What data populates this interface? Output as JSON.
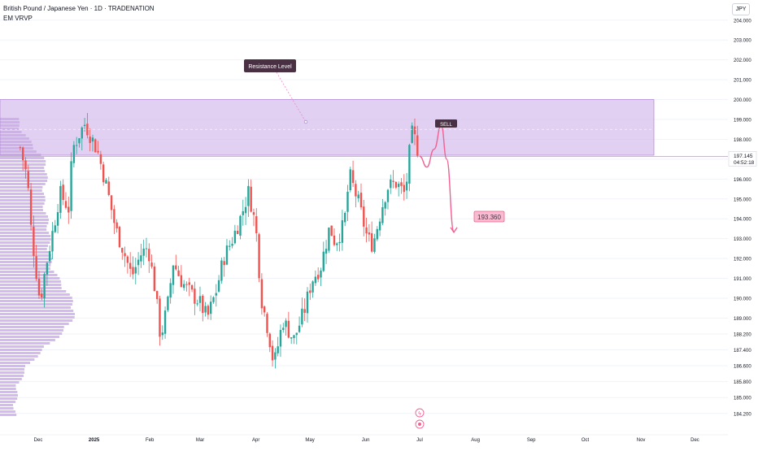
{
  "header": {
    "symbol_line": "British Pound / Japanese Yen · 1D · TRADENATION",
    "indicator": "EM VRVP",
    "currency_button": "JPY"
  },
  "colors": {
    "up": "#26a69a",
    "down": "#ef5350",
    "zone_fill": "#c9a9e6",
    "zone_edge": "#b48ad8",
    "volume_profile": "#c7a3ee",
    "projection": "#f06292",
    "label_dark": "#4a3043"
  },
  "annotations": {
    "resistance_label": "Resistance Level",
    "sell_label": "SELL",
    "target_label": "193.360",
    "last_price": "197.145",
    "countdown": "04:52:18"
  },
  "chart_data": {
    "type": "candlestick",
    "title": "British Pound / Japanese Yen · 1D · TRADENATION",
    "y_axis_ticks": [
      "204.000",
      "203.000",
      "202.000",
      "201.000",
      "200.000",
      "199.000",
      "198.000",
      "197.000",
      "196.000",
      "195.000",
      "194.000",
      "193.000",
      "192.000",
      "191.000",
      "190.000",
      "189.000",
      "188.200",
      "187.400",
      "186.600",
      "185.800",
      "185.000",
      "184.200"
    ],
    "x_axis_ticks": [
      "Dec",
      "2025",
      "Feb",
      "Mar",
      "Apr",
      "May",
      "Jun",
      "Jul",
      "Aug",
      "Sep",
      "Oct",
      "Nov",
      "Dec"
    ],
    "resistance_zone": [
      197.2,
      200.0
    ],
    "current_price": 197.145,
    "target_price": 193.36,
    "price_path": [
      {
        "date": "2024-11-21",
        "price": 197.6
      },
      {
        "date": "2024-11-25",
        "price": 196.0
      },
      {
        "date": "2024-11-27",
        "price": 193.5
      },
      {
        "date": "2024-12-02",
        "price": 189.8
      },
      {
        "date": "2024-12-05",
        "price": 191.5
      },
      {
        "date": "2024-12-10",
        "price": 193.8
      },
      {
        "date": "2024-12-13",
        "price": 195.3
      },
      {
        "date": "2024-12-18",
        "price": 194.5
      },
      {
        "date": "2024-12-20",
        "price": 197.5
      },
      {
        "date": "2024-12-24",
        "price": 198.3
      },
      {
        "date": "2024-12-27",
        "price": 198.8
      },
      {
        "date": "2025-01-03",
        "price": 197.4
      },
      {
        "date": "2025-01-08",
        "price": 195.6
      },
      {
        "date": "2025-01-13",
        "price": 193.5
      },
      {
        "date": "2025-01-17",
        "price": 192.5
      },
      {
        "date": "2025-01-22",
        "price": 191.1
      },
      {
        "date": "2025-01-27",
        "price": 192.2
      },
      {
        "date": "2025-01-31",
        "price": 192.6
      },
      {
        "date": "2025-02-04",
        "price": 190.4
      },
      {
        "date": "2025-02-07",
        "price": 188.0
      },
      {
        "date": "2025-02-11",
        "price": 189.7
      },
      {
        "date": "2025-02-14",
        "price": 191.8
      },
      {
        "date": "2025-02-19",
        "price": 190.8
      },
      {
        "date": "2025-02-24",
        "price": 190.2
      },
      {
        "date": "2025-02-28",
        "price": 189.9
      },
      {
        "date": "2025-03-05",
        "price": 189.0
      },
      {
        "date": "2025-03-10",
        "price": 190.4
      },
      {
        "date": "2025-03-14",
        "price": 192.0
      },
      {
        "date": "2025-03-19",
        "price": 193.0
      },
      {
        "date": "2025-03-24",
        "price": 194.2
      },
      {
        "date": "2025-03-28",
        "price": 195.4
      },
      {
        "date": "2025-04-01",
        "price": 193.5
      },
      {
        "date": "2025-04-04",
        "price": 190.0
      },
      {
        "date": "2025-04-08",
        "price": 188.3
      },
      {
        "date": "2025-04-11",
        "price": 186.6
      },
      {
        "date": "2025-04-16",
        "price": 188.9
      },
      {
        "date": "2025-04-22",
        "price": 187.9
      },
      {
        "date": "2025-04-28",
        "price": 189.4
      },
      {
        "date": "2025-05-02",
        "price": 190.9
      },
      {
        "date": "2025-05-07",
        "price": 191.6
      },
      {
        "date": "2025-05-12",
        "price": 193.6
      },
      {
        "date": "2025-05-15",
        "price": 192.8
      },
      {
        "date": "2025-05-20",
        "price": 193.7
      },
      {
        "date": "2025-05-23",
        "price": 196.2
      },
      {
        "date": "2025-05-28",
        "price": 194.8
      },
      {
        "date": "2025-06-02",
        "price": 193.0
      },
      {
        "date": "2025-06-05",
        "price": 192.7
      },
      {
        "date": "2025-06-10",
        "price": 194.6
      },
      {
        "date": "2025-06-13",
        "price": 195.6
      },
      {
        "date": "2025-06-18",
        "price": 195.8
      },
      {
        "date": "2025-06-23",
        "price": 195.2
      },
      {
        "date": "2025-06-25",
        "price": 197.1
      },
      {
        "date": "2025-06-27",
        "price": 198.4
      },
      {
        "date": "2025-07-01",
        "price": 197.145
      }
    ],
    "projection_path": [
      {
        "date": "2025-07-01",
        "price": 197.145
      },
      {
        "date": "2025-07-05",
        "price": 196.6
      },
      {
        "date": "2025-07-09",
        "price": 197.5
      },
      {
        "date": "2025-07-13",
        "price": 198.7
      },
      {
        "date": "2025-07-16",
        "price": 197.0
      },
      {
        "date": "2025-07-20",
        "price": 193.36
      }
    ],
    "grid": true,
    "scale": "linear"
  }
}
